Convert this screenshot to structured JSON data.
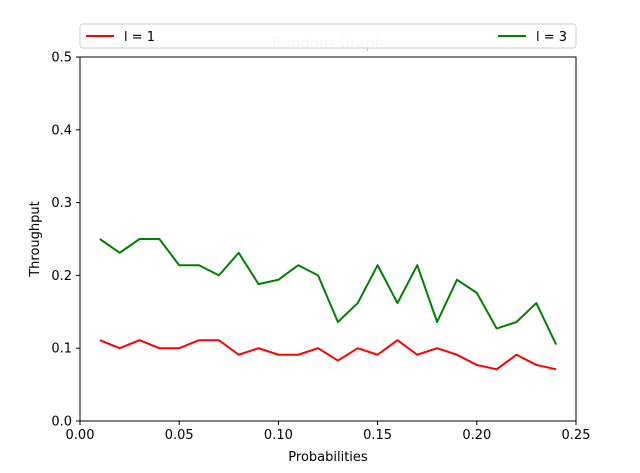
{
  "chart_data": {
    "type": "line",
    "title": "Random Graph",
    "xlabel": "Probabilities",
    "ylabel": "Throughput",
    "xlim": [
      0,
      0.25
    ],
    "ylim": [
      0,
      0.5
    ],
    "xticks": [
      "0.00",
      "0.05",
      "0.10",
      "0.15",
      "0.20",
      "0.25"
    ],
    "yticks": [
      "0.0",
      "0.1",
      "0.2",
      "0.3",
      "0.4",
      "0.5"
    ],
    "grid": false,
    "legend_placement": "top",
    "x": [
      0.01,
      0.02,
      0.03,
      0.04,
      0.05,
      0.06,
      0.07,
      0.08,
      0.09,
      0.1,
      0.11,
      0.12,
      0.13,
      0.14,
      0.15,
      0.16,
      0.17,
      0.18,
      0.19,
      0.2,
      0.21,
      0.22,
      0.23,
      0.24
    ],
    "series": [
      {
        "name": "l = 1",
        "color": "#ff0000",
        "values": [
          0.111,
          0.1,
          0.111,
          0.1,
          0.1,
          0.111,
          0.111,
          0.091,
          0.1,
          0.091,
          0.091,
          0.1,
          0.083,
          0.1,
          0.091,
          0.111,
          0.091,
          0.1,
          0.091,
          0.077,
          0.071,
          0.091,
          0.077,
          0.071
        ]
      },
      {
        "name": "l = 3",
        "color": "#008000",
        "values": [
          0.25,
          0.231,
          0.25,
          0.25,
          0.214,
          0.214,
          0.2,
          0.231,
          0.188,
          0.194,
          0.214,
          0.2,
          0.136,
          0.162,
          0.214,
          0.162,
          0.214,
          0.136,
          0.194,
          0.176,
          0.127,
          0.136,
          0.162,
          0.105
        ]
      }
    ]
  }
}
